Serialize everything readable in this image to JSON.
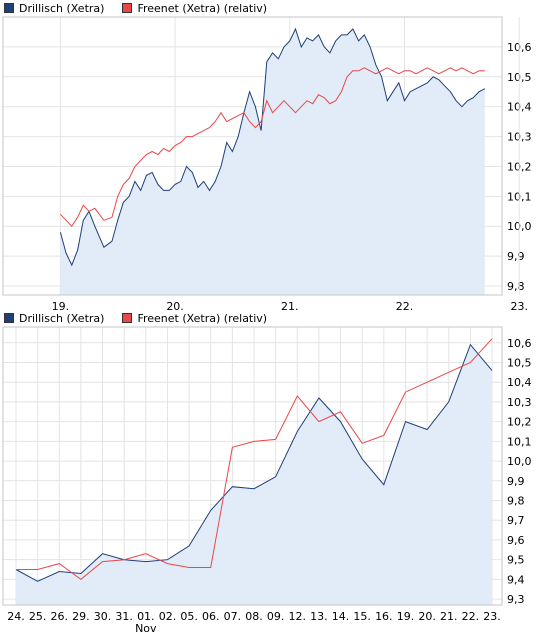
{
  "colors": {
    "drillisch": "#1f3f7a",
    "freenet": "#e8484a",
    "area": "#e2ebf8",
    "plot_border": "#c6c6c6",
    "grid": "#e4e4e4"
  },
  "charts": [
    {
      "legend": [
        {
          "label": "Drillisch (Xetra)",
          "color": "#1f3f7a"
        },
        {
          "label": "Freenet (Xetra) (relativ)",
          "color": "#e8484a"
        }
      ],
      "x_tick_labels": [
        "19.",
        "20.",
        "21.",
        "22.",
        "23."
      ],
      "y_tick_labels": [
        "10,6",
        "10,5",
        "10,4",
        "10,3",
        "10,2",
        "10,1",
        "10,0",
        "9,9",
        "9,8"
      ]
    },
    {
      "legend": [
        {
          "label": "Drillisch (Xetra)",
          "color": "#1f3f7a"
        },
        {
          "label": "Freenet (Xetra) (relativ)",
          "color": "#e8484a"
        }
      ],
      "x_tick_labels": [
        "24.",
        "25.",
        "26.",
        "29.",
        "30.",
        "31.",
        "01.",
        "02.",
        "05.",
        "06.",
        "07.",
        "08.",
        "09.",
        "12.",
        "13.",
        "14.",
        "15.",
        "16.",
        "19.",
        "20.",
        "21.",
        "22.",
        "23."
      ],
      "x_sublabel": "Nov",
      "y_tick_labels": [
        "10,6",
        "10,5",
        "10,4",
        "10,3",
        "10,2",
        "10,1",
        "10,0",
        "9,9",
        "9,8",
        "9,7",
        "9,6",
        "9,5",
        "9,4",
        "9,3"
      ]
    }
  ],
  "chart_data": [
    {
      "type": "line",
      "series": [
        {
          "name": "Drillisch (Xetra)",
          "style": "area",
          "x": [
            0,
            0.05,
            0.1,
            0.15,
            0.2,
            0.25,
            0.3,
            0.38,
            0.45,
            0.5,
            0.55,
            0.6,
            0.65,
            0.7,
            0.75,
            0.8,
            0.85,
            0.9,
            0.95,
            1.0,
            1.05,
            1.1,
            1.15,
            1.2,
            1.25,
            1.3,
            1.35,
            1.4,
            1.45,
            1.5,
            1.55,
            1.6,
            1.65,
            1.7,
            1.75,
            1.8,
            1.85,
            1.9,
            1.95,
            2.0,
            2.05,
            2.1,
            2.15,
            2.2,
            2.25,
            2.3,
            2.35,
            2.4,
            2.45,
            2.5,
            2.55,
            2.6,
            2.65,
            2.7,
            2.75,
            2.8,
            2.85,
            2.9,
            2.95,
            3.0,
            3.05,
            3.1,
            3.15,
            3.2,
            3.25,
            3.3,
            3.35,
            3.4,
            3.45,
            3.5,
            3.55,
            3.6,
            3.65,
            3.7
          ],
          "values": [
            9.98,
            9.91,
            9.87,
            9.92,
            10.02,
            10.05,
            10.0,
            9.93,
            9.95,
            10.02,
            10.08,
            10.1,
            10.15,
            10.12,
            10.17,
            10.18,
            10.14,
            10.12,
            10.12,
            10.14,
            10.15,
            10.2,
            10.18,
            10.13,
            10.15,
            10.12,
            10.15,
            10.2,
            10.28,
            10.25,
            10.3,
            10.38,
            10.45,
            10.4,
            10.32,
            10.55,
            10.58,
            10.56,
            10.6,
            10.62,
            10.66,
            10.6,
            10.63,
            10.62,
            10.64,
            10.6,
            10.58,
            10.62,
            10.64,
            10.64,
            10.66,
            10.62,
            10.64,
            10.6,
            10.54,
            10.5,
            10.42,
            10.45,
            10.48,
            10.42,
            10.45,
            10.46,
            10.47,
            10.48,
            10.5,
            10.49,
            10.47,
            10.45,
            10.42,
            10.4,
            10.42,
            10.43,
            10.45,
            10.46
          ]
        },
        {
          "name": "Freenet (Xetra) (relativ)",
          "style": "line",
          "x": [
            0,
            0.05,
            0.1,
            0.15,
            0.2,
            0.25,
            0.3,
            0.38,
            0.45,
            0.5,
            0.55,
            0.6,
            0.65,
            0.7,
            0.75,
            0.8,
            0.85,
            0.9,
            0.95,
            1.0,
            1.05,
            1.1,
            1.15,
            1.2,
            1.25,
            1.3,
            1.35,
            1.4,
            1.45,
            1.5,
            1.55,
            1.6,
            1.65,
            1.7,
            1.75,
            1.8,
            1.85,
            1.9,
            1.95,
            2.0,
            2.05,
            2.1,
            2.15,
            2.2,
            2.25,
            2.3,
            2.35,
            2.4,
            2.45,
            2.5,
            2.55,
            2.6,
            2.65,
            2.7,
            2.75,
            2.8,
            2.85,
            2.9,
            2.95,
            3.0,
            3.05,
            3.1,
            3.15,
            3.2,
            3.25,
            3.3,
            3.35,
            3.4,
            3.45,
            3.5,
            3.55,
            3.6,
            3.65,
            3.7
          ],
          "values": [
            10.04,
            10.02,
            10.0,
            10.03,
            10.07,
            10.05,
            10.06,
            10.02,
            10.03,
            10.1,
            10.14,
            10.16,
            10.2,
            10.22,
            10.24,
            10.25,
            10.24,
            10.26,
            10.25,
            10.27,
            10.28,
            10.3,
            10.3,
            10.31,
            10.32,
            10.33,
            10.35,
            10.38,
            10.35,
            10.36,
            10.37,
            10.38,
            10.35,
            10.33,
            10.35,
            10.42,
            10.38,
            10.4,
            10.42,
            10.4,
            10.38,
            10.4,
            10.42,
            10.41,
            10.44,
            10.43,
            10.41,
            10.42,
            10.45,
            10.5,
            10.52,
            10.52,
            10.53,
            10.52,
            10.51,
            10.52,
            10.53,
            10.52,
            10.51,
            10.52,
            10.52,
            10.51,
            10.52,
            10.53,
            10.52,
            10.51,
            10.52,
            10.53,
            10.52,
            10.53,
            10.52,
            10.51,
            10.52,
            10.52
          ]
        }
      ],
      "ylim": [
        9.77,
        10.7
      ],
      "xlim": [
        -0.5,
        3.85
      ],
      "categories": [
        "19.",
        "20.",
        "21.",
        "22.",
        "23."
      ],
      "grid": true
    },
    {
      "type": "line",
      "categories": [
        "24.",
        "25.",
        "26.",
        "29.",
        "30.",
        "31.",
        "01.",
        "02.",
        "05.",
        "06.",
        "07.",
        "08.",
        "09.",
        "12.",
        "13.",
        "14.",
        "15.",
        "16.",
        "19.",
        "20.",
        "21.",
        "22.",
        "23."
      ],
      "series": [
        {
          "name": "Drillisch (Xetra)",
          "style": "area",
          "values": [
            9.45,
            9.39,
            9.44,
            9.43,
            9.53,
            9.5,
            9.49,
            9.5,
            9.57,
            9.75,
            9.87,
            9.86,
            9.92,
            10.15,
            10.32,
            10.2,
            10.01,
            9.88,
            10.2,
            10.16,
            10.3,
            10.59,
            10.46
          ]
        },
        {
          "name": "Freenet (Xetra) (relativ)",
          "style": "line",
          "values": [
            9.45,
            9.45,
            9.48,
            9.4,
            9.49,
            9.5,
            9.53,
            9.48,
            9.46,
            9.46,
            10.07,
            10.1,
            10.11,
            10.33,
            10.2,
            10.25,
            10.09,
            10.13,
            10.35,
            10.4,
            10.45,
            10.5,
            10.62
          ]
        }
      ],
      "ylim": [
        9.27,
        10.68
      ],
      "grid": true
    }
  ]
}
